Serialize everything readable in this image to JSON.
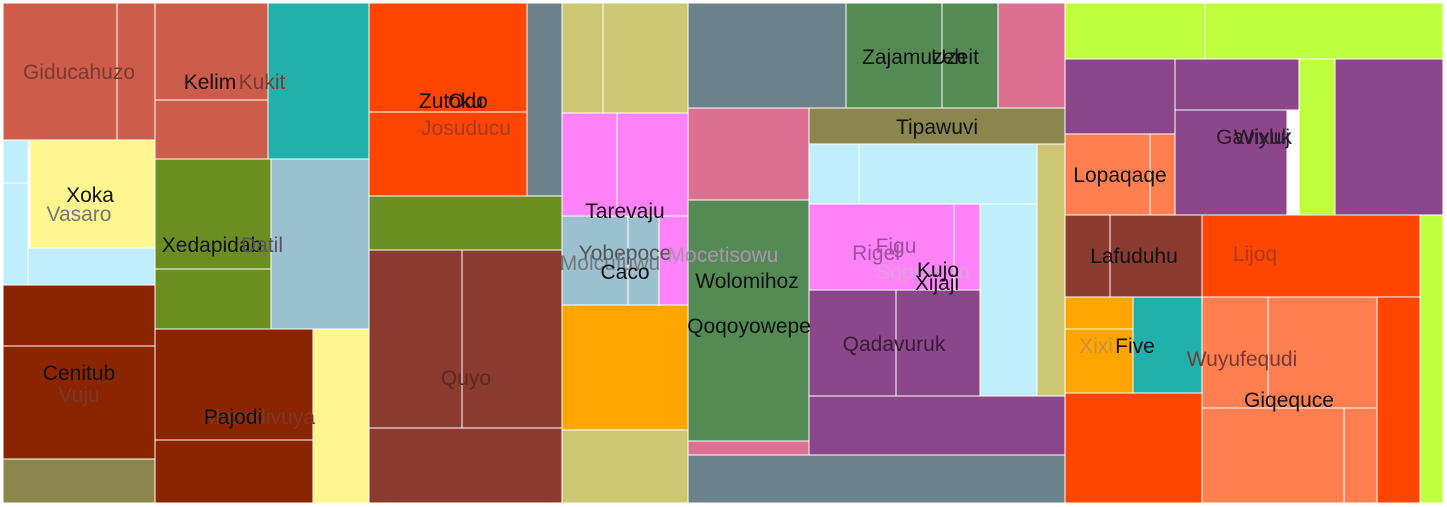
{
  "chart_data": {
    "type": "treemap",
    "title": "",
    "cells": [
      {
        "label": "",
        "color": "#CD5C4A"
      },
      {
        "label": "",
        "color": "#CD5C4A"
      },
      {
        "label": "",
        "color": "#CD5C4A"
      },
      {
        "label": "",
        "color": "#CD5C4A"
      },
      {
        "label": "",
        "color": "#20B2AA"
      },
      {
        "label": "",
        "color": "#BFEEFC"
      },
      {
        "label": "",
        "color": "#BFEEFC"
      },
      {
        "label": "",
        "color": "#BFEEFC"
      },
      {
        "label": "",
        "color": "#BFEEFC"
      },
      {
        "label": "",
        "color": "#FFF68F"
      },
      {
        "label": "",
        "color": "#6B8E23"
      },
      {
        "label": "",
        "color": "#6B8E23"
      },
      {
        "label": "",
        "color": "#9BC0D0"
      },
      {
        "label": "",
        "color": "#8B2500"
      },
      {
        "label": "",
        "color": "#8B2500"
      },
      {
        "label": "",
        "color": "#8B864E"
      },
      {
        "label": "",
        "color": "#8B2500"
      },
      {
        "label": "",
        "color": "#8B2500"
      },
      {
        "label": "",
        "color": "#FFF68F"
      },
      {
        "label": "",
        "color": "#FF4500"
      },
      {
        "label": "",
        "color": "#FF4500"
      },
      {
        "label": "",
        "color": "#6B828C"
      },
      {
        "label": "",
        "color": "#6B8E23"
      },
      {
        "label": "",
        "color": "#8B3A30"
      },
      {
        "label": "",
        "color": "#8B3A30"
      },
      {
        "label": "",
        "color": "#8B3A30"
      },
      {
        "label": "",
        "color": "#CDC673"
      },
      {
        "label": "",
        "color": "#CDC673"
      },
      {
        "label": "",
        "color": "#FF82F9"
      },
      {
        "label": "",
        "color": "#FF82F9"
      },
      {
        "label": "",
        "color": "#9BC0D0"
      },
      {
        "label": "",
        "color": "#9BC0D0"
      },
      {
        "label": "",
        "color": "#FF82F9"
      },
      {
        "label": "",
        "color": "#FFA500"
      },
      {
        "label": "",
        "color": "#CDC673"
      },
      {
        "label": "",
        "color": "#6B828C"
      },
      {
        "label": "",
        "color": "#548B54"
      },
      {
        "label": "",
        "color": "#548B54"
      },
      {
        "label": "",
        "color": "#DB7093"
      },
      {
        "label": "",
        "color": "#8B864E"
      },
      {
        "label": "",
        "color": "#DB7093"
      },
      {
        "label": "",
        "color": "#548B54"
      },
      {
        "label": "",
        "color": "#DB7093"
      },
      {
        "label": "",
        "color": "#BFEEFC"
      },
      {
        "label": "",
        "color": "#BFEEFC"
      },
      {
        "label": "",
        "color": "#CDC673"
      },
      {
        "label": "",
        "color": "#FF82F9"
      },
      {
        "label": "",
        "color": "#FF82F9"
      },
      {
        "label": "",
        "color": "#BFEEFC"
      },
      {
        "label": "",
        "color": "#8B4789"
      },
      {
        "label": "",
        "color": "#8B4789"
      },
      {
        "label": "",
        "color": "#8B4789"
      },
      {
        "label": "",
        "color": "#6B828C"
      },
      {
        "label": "",
        "color": "#C0FF3E"
      },
      {
        "label": "",
        "color": "#C0FF3E"
      },
      {
        "label": "",
        "color": "#8B4789"
      },
      {
        "label": "",
        "color": "#8B4789"
      },
      {
        "label": "",
        "color": "#8B4789"
      },
      {
        "label": "",
        "color": "#C0FF3E"
      },
      {
        "label": "",
        "color": "#8B4789"
      },
      {
        "label": "",
        "color": "#FF7F50"
      },
      {
        "label": "",
        "color": "#FF7F50"
      },
      {
        "label": "",
        "color": "#8B3A30"
      },
      {
        "label": "",
        "color": "#8B3A30"
      },
      {
        "label": "",
        "color": "#FF4500"
      },
      {
        "label": "",
        "color": "#C0FF3E"
      },
      {
        "label": "",
        "color": "#FFA500"
      },
      {
        "label": "",
        "color": "#FFA500"
      },
      {
        "label": "",
        "color": "#20B2AA"
      },
      {
        "label": "",
        "color": "#FF4500"
      },
      {
        "label": "",
        "color": "#FF7F50"
      },
      {
        "label": "",
        "color": "#FF7F50"
      },
      {
        "label": "",
        "color": "#FF4500"
      },
      {
        "label": "",
        "color": "#FF7F50"
      },
      {
        "label": "",
        "color": "#FF7F50"
      }
    ],
    "labels": [
      {
        "text": "Giducahuzo",
        "color": "#7a3a30"
      },
      {
        "text": "Kukit",
        "color": "#7a3a30"
      },
      {
        "text": "Kelim",
        "color": "#111111"
      },
      {
        "text": "Xoka",
        "color": "#111111"
      },
      {
        "text": "Vasaro",
        "color": "#777777"
      },
      {
        "text": "Xedapidab",
        "color": "#111111"
      },
      {
        "text": "Datil",
        "color": "#555555"
      },
      {
        "text": "Cenitub",
        "color": "#111111"
      },
      {
        "text": "Vuju",
        "color": "#7a3a30"
      },
      {
        "text": "Masodivuya",
        "color": "#7a3a30"
      },
      {
        "text": "Pajodi",
        "color": "#111111"
      },
      {
        "text": "Zutoku",
        "color": "#111111"
      },
      {
        "text": "Odo",
        "color": "#111111"
      },
      {
        "text": "Josuducu",
        "color": "#a83a20"
      },
      {
        "text": "Quyo",
        "color": "#5a2a20"
      },
      {
        "text": "Tarevaju",
        "color": "#111111"
      },
      {
        "text": "Yobepoce",
        "color": "#555555"
      },
      {
        "text": "Mocetisowu",
        "color": "#b090b0"
      },
      {
        "text": "Molcufuwu",
        "color": "#777777"
      },
      {
        "text": "Caco",
        "color": "#111111"
      },
      {
        "text": "Wolomihoz",
        "color": "#111111"
      },
      {
        "text": "Qoqoyowepe",
        "color": "#111111"
      },
      {
        "text": "Zajamuzeh",
        "color": "#111111"
      },
      {
        "text": "Uzeit",
        "color": "#111111"
      },
      {
        "text": "Tipawuvi",
        "color": "#111111"
      },
      {
        "text": "Rigel",
        "color": "#a050a0"
      },
      {
        "text": "Figu",
        "color": "#a050a0"
      },
      {
        "text": "Sopomixo",
        "color": "#e0a0e0"
      },
      {
        "text": "Kujo",
        "color": "#111111"
      },
      {
        "text": "Xijaji",
        "color": "#111111"
      },
      {
        "text": "Qadavuruk",
        "color": "#3a1a3a"
      },
      {
        "text": "Gavixuk",
        "color": "#2a1a2a"
      },
      {
        "text": "Wiyluj",
        "color": "#2a1a2a"
      },
      {
        "text": "Lopaqaqe",
        "color": "#111111"
      },
      {
        "text": "Lafuduhu",
        "color": "#111111"
      },
      {
        "text": "Lijoq",
        "color": "#a83a20"
      },
      {
        "text": "Xixi",
        "color": "#c89040"
      },
      {
        "text": "Five",
        "color": "#111111"
      },
      {
        "text": "Wuyufequdi",
        "color": "#7a3a30"
      },
      {
        "text": "Giqequce",
        "color": "#111111"
      }
    ]
  }
}
